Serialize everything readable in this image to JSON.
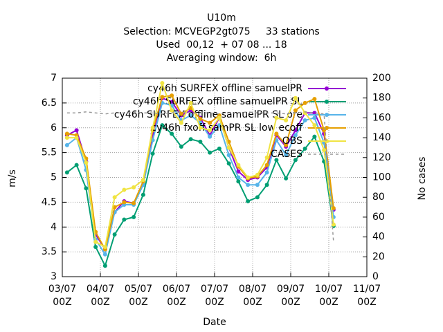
{
  "chart_data": {
    "type": "line",
    "title": "U10m",
    "subtitle": [
      "Selection: MCVEGP2gt075     33 stations",
      "Used  00,12  + 07 08 ... 18",
      "Averaging window:  6h"
    ],
    "xlabel": "Date",
    "ylabel": "m/s",
    "y2label": "No cases",
    "x": [
      "03/07 03Z",
      "03/07 09Z",
      "03/07 15Z",
      "03/07 21Z",
      "04/07 03Z",
      "04/07 09Z",
      "04/07 15Z",
      "04/07 21Z",
      "05/07 03Z",
      "05/07 09Z",
      "05/07 15Z",
      "05/07 21Z",
      "06/07 03Z",
      "06/07 09Z",
      "06/07 15Z",
      "06/07 21Z",
      "07/07 03Z",
      "07/07 09Z",
      "07/07 15Z",
      "07/07 21Z",
      "08/07 03Z",
      "08/07 09Z",
      "08/07 15Z",
      "08/07 21Z",
      "09/07 03Z",
      "09/07 09Z",
      "09/07 15Z",
      "09/07 21Z",
      "10/07 03Z"
    ],
    "xlim": [
      "03/07 00Z",
      "11/07 00Z"
    ],
    "xticks": [
      "03/07 00Z",
      "04/07 00Z",
      "05/07 00Z",
      "06/07 00Z",
      "07/07 00Z",
      "08/07 00Z",
      "09/07 00Z",
      "10/07 00Z",
      "11/07 00Z"
    ],
    "ylim": [
      3,
      7
    ],
    "yticks": [
      3,
      3.5,
      4,
      4.5,
      5,
      5.5,
      6,
      6.5,
      7
    ],
    "y2lim": [
      0,
      200
    ],
    "y2ticks": [
      0,
      20,
      40,
      60,
      80,
      100,
      120,
      140,
      160,
      180,
      200
    ],
    "grid": true,
    "series": [
      {
        "name": "cy46h SURFEX offline samuelPR",
        "color": "#9400d3",
        "values": [
          5.85,
          5.95,
          5.32,
          3.85,
          3.55,
          4.3,
          4.52,
          4.48,
          4.85,
          5.88,
          6.6,
          6.52,
          6.25,
          6.35,
          6.2,
          5.85,
          6.2,
          5.6,
          5.12,
          4.95,
          5.0,
          5.2,
          5.85,
          5.62,
          5.95,
          6.3,
          6.3,
          5.88,
          4.35
        ]
      },
      {
        "name": "cy46h SURFEX offline samuelPR SL",
        "color": "#009e73",
        "values": [
          5.1,
          5.25,
          4.78,
          3.6,
          3.22,
          3.85,
          4.15,
          4.2,
          4.65,
          5.48,
          6.05,
          5.88,
          5.62,
          5.77,
          5.72,
          5.5,
          5.58,
          5.28,
          4.92,
          4.52,
          4.6,
          4.85,
          5.35,
          4.98,
          5.35,
          5.58,
          5.82,
          5.32,
          4.02
        ]
      },
      {
        "name": "cy46h SURFEX offline samuelPR SL ore",
        "color": "#56b4e9",
        "values": [
          5.65,
          5.8,
          5.15,
          3.75,
          3.45,
          4.3,
          4.45,
          4.45,
          4.85,
          5.75,
          6.5,
          6.45,
          6.15,
          6.25,
          6.1,
          5.82,
          6.05,
          5.45,
          5.0,
          4.85,
          4.85,
          5.1,
          5.75,
          5.45,
          5.85,
          6.15,
          6.2,
          5.7,
          4.2
        ]
      },
      {
        "name": "cy46h fxoff samPR SL low ecoff",
        "color": "#e69f00",
        "values": [
          5.88,
          5.85,
          5.38,
          3.9,
          3.55,
          4.4,
          4.5,
          4.48,
          4.92,
          5.95,
          6.62,
          6.65,
          6.28,
          6.4,
          6.18,
          6.1,
          6.25,
          5.72,
          5.22,
          4.98,
          5.02,
          5.25,
          5.88,
          5.65,
          6.35,
          6.5,
          6.58,
          5.95,
          4.38
        ]
      },
      {
        "name": "OBS",
        "color": "#f0e442",
        "values": [
          5.8,
          5.8,
          5.3,
          3.7,
          3.6,
          4.6,
          4.75,
          4.8,
          4.95,
          6.0,
          6.9,
          6.35,
          6.1,
          6.5,
          6.0,
          5.95,
          6.2,
          5.6,
          5.25,
          5.0,
          5.05,
          5.4,
          6.2,
          6.15,
          6.6,
          6.3,
          6.05,
          5.55,
          4.05
        ]
      },
      {
        "name": "CASES",
        "color": "#999999",
        "axis": "y2",
        "dashed": true,
        "values": [
          165,
          165,
          166,
          165,
          164,
          165,
          165,
          166,
          165,
          165,
          164,
          165,
          166,
          165,
          165,
          165,
          164,
          165,
          165,
          166,
          165,
          165,
          165,
          164,
          165,
          166,
          165,
          164,
          35
        ]
      }
    ]
  }
}
